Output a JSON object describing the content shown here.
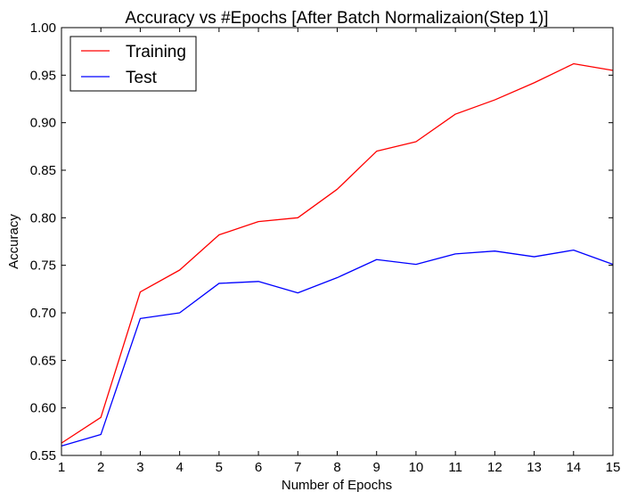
{
  "chart_data": {
    "type": "line",
    "title": "Accuracy vs #Epochs [After Batch Normalizaion(Step 1)]",
    "xlabel": "Number of Epochs",
    "ylabel": "Accuracy",
    "xlim": [
      1,
      15
    ],
    "ylim": [
      0.55,
      1.0
    ],
    "x": [
      1,
      2,
      3,
      4,
      5,
      6,
      7,
      8,
      9,
      10,
      11,
      12,
      13,
      14,
      15
    ],
    "xticks": [
      "1",
      "2",
      "3",
      "4",
      "5",
      "6",
      "7",
      "8",
      "9",
      "10",
      "11",
      "12",
      "13",
      "14",
      "15"
    ],
    "yticks": [
      "0.55",
      "0.60",
      "0.65",
      "0.70",
      "0.75",
      "0.80",
      "0.85",
      "0.90",
      "0.95",
      "1.00"
    ],
    "grid": false,
    "legend_position": "top-left",
    "series": [
      {
        "name": "Training",
        "color": "#ff0000",
        "values": [
          0.563,
          0.59,
          0.722,
          0.745,
          0.782,
          0.796,
          0.8,
          0.83,
          0.87,
          0.88,
          0.909,
          0.924,
          0.942,
          0.962,
          0.955
        ]
      },
      {
        "name": "Test",
        "color": "#0000ff",
        "values": [
          0.56,
          0.572,
          0.694,
          0.7,
          0.731,
          0.733,
          0.721,
          0.737,
          0.756,
          0.751,
          0.762,
          0.765,
          0.759,
          0.766,
          0.751
        ]
      }
    ]
  }
}
